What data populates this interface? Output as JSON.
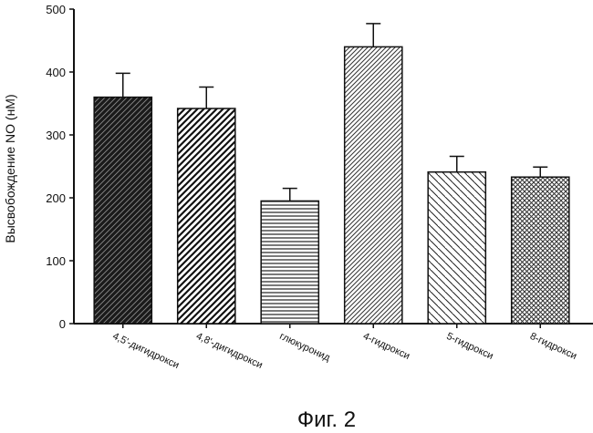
{
  "chart_data": {
    "type": "bar",
    "title": "",
    "xlabel": "",
    "ylabel": "Высвобождение NO (нМ)",
    "ylim": [
      0,
      500
    ],
    "yticks": [
      0,
      100,
      200,
      300,
      400,
      500
    ],
    "categories": [
      "4,5'-дигидрокси",
      "4,8'-дигидрокси",
      "глюкуронид",
      "4-гидрокси",
      "5-гидрокси",
      "8-гидрокси"
    ],
    "values": [
      360,
      342,
      195,
      440,
      241,
      233
    ],
    "errors": [
      38,
      34,
      20,
      37,
      25,
      16
    ],
    "patterns": [
      "dense-diagonal",
      "diagonal-up",
      "horizontal",
      "fine-diagonal-up",
      "diagonal-down",
      "crosshatch"
    ],
    "grid": false
  },
  "figure_caption": "Фиг. 2"
}
